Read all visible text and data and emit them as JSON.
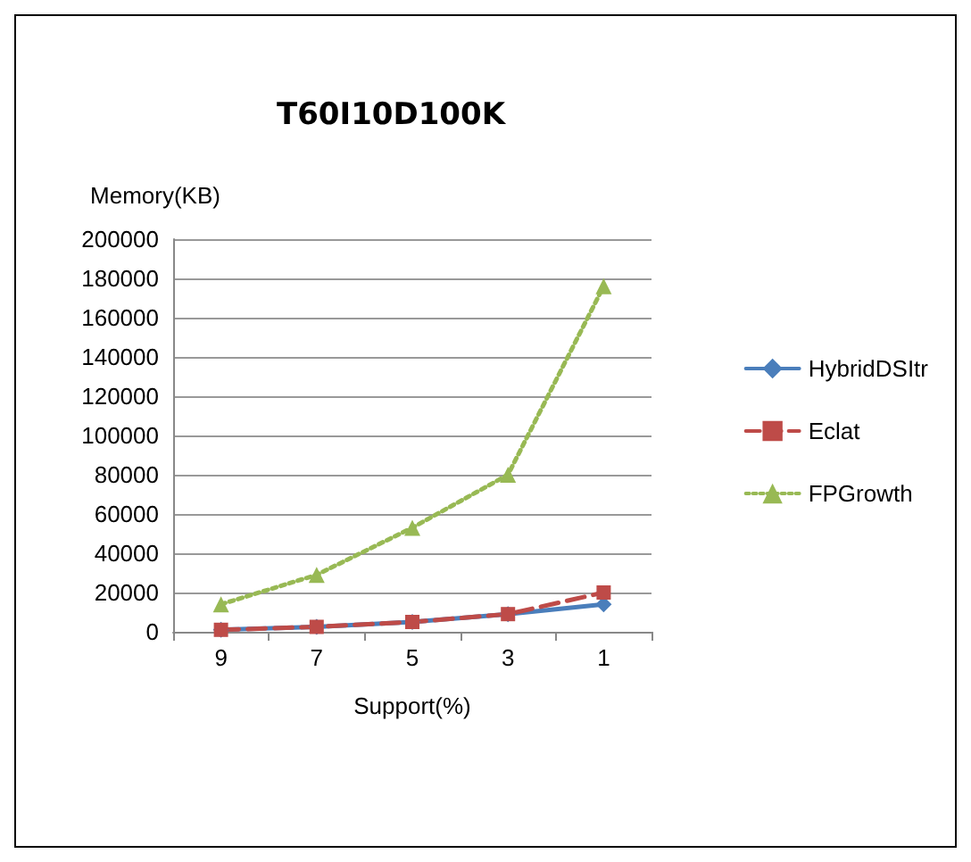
{
  "chart_data": {
    "type": "line",
    "title": "T60I10D100K",
    "ylabel": "Memory(KB)",
    "xlabel": "Support(%)",
    "categories": [
      "9",
      "7",
      "5",
      "3",
      "1"
    ],
    "series": [
      {
        "name": "HybridDSItr",
        "color": "#4a7ebb",
        "values": [
          1000,
          2500,
          5000,
          9000,
          14000
        ],
        "marker": "diamond",
        "line_style": "solid"
      },
      {
        "name": "Eclat",
        "color": "#be4b48",
        "values": [
          1000,
          2500,
          5000,
          9000,
          20000
        ],
        "marker": "square",
        "line_style": "dashed"
      },
      {
        "name": "FPGrowth",
        "color": "#98b954",
        "values": [
          14000,
          29000,
          53000,
          80000,
          176000
        ],
        "marker": "triangle",
        "line_style": "dotted"
      }
    ],
    "ylim": [
      0,
      200000
    ],
    "yticks": [
      0,
      20000,
      40000,
      60000,
      80000,
      100000,
      120000,
      140000,
      160000,
      180000,
      200000
    ],
    "grid": "y",
    "legend": "right"
  }
}
